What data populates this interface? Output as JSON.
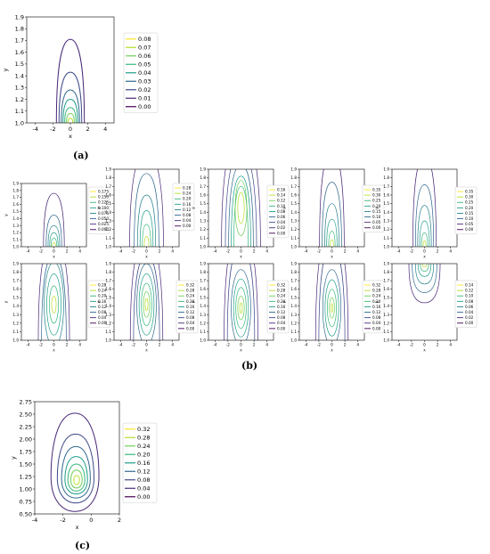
{
  "captions": {
    "a": "(a)",
    "b": "(b)",
    "c": "(c)"
  },
  "colors": {
    "viridis": [
      "#440154",
      "#482878",
      "#3e4a89",
      "#31688e",
      "#26828e",
      "#1f9e89",
      "#35b779",
      "#6ece58",
      "#b5de2b",
      "#fde725"
    ]
  },
  "chart_data": [
    {
      "id": "a",
      "type": "contour",
      "xlabel": "x",
      "ylabel": "y",
      "xlim": [
        -5,
        5
      ],
      "ylim": [
        1.0,
        1.9
      ],
      "xticks": [
        "-4",
        "-2",
        "0",
        "2",
        "4"
      ],
      "yticks": [
        "1.0",
        "1.1",
        "1.2",
        "1.3",
        "1.4",
        "1.5",
        "1.6",
        "1.7",
        "1.8",
        "1.9"
      ],
      "levels": [
        "0.00",
        "0.01",
        "0.02",
        "0.03",
        "0.04",
        "0.05",
        "0.06",
        "0.07",
        "0.08"
      ],
      "center": [
        0,
        1.0
      ],
      "contours": [
        {
          "level": 0.01,
          "hw": 1.6,
          "top": 1.71
        },
        {
          "level": 0.02,
          "hw": 1.3,
          "top": 1.43
        },
        {
          "level": 0.03,
          "hw": 1.05,
          "top": 1.28
        },
        {
          "level": 0.04,
          "hw": 0.85,
          "top": 1.2
        },
        {
          "level": 0.05,
          "hw": 0.65,
          "top": 1.13
        },
        {
          "level": 0.06,
          "hw": 0.45,
          "top": 1.08
        },
        {
          "level": 0.07,
          "hw": 0.28,
          "top": 1.04
        }
      ]
    },
    {
      "id": "b1",
      "type": "contour",
      "xlabel": "x",
      "ylabel": "y",
      "xlim": [
        -5,
        5
      ],
      "ylim": [
        1.0,
        1.9
      ],
      "xticks": [
        "-4",
        "-2",
        "0",
        "2",
        "4"
      ],
      "yticks": [
        "1.0",
        "1.1",
        "1.2",
        "1.3",
        "1.4",
        "1.5",
        "1.6",
        "1.7",
        "1.8",
        "1.9"
      ],
      "levels": [
        "0.000",
        "0.025",
        "0.050",
        "0.075",
        "0.100",
        "0.125",
        "0.150",
        "0.175"
      ],
      "center": [
        0,
        1.0
      ],
      "contours": [
        {
          "level": 0.025,
          "hw": 1.6,
          "top": 1.76
        },
        {
          "level": 0.05,
          "hw": 1.2,
          "top": 1.45
        },
        {
          "level": 0.075,
          "hw": 0.9,
          "top": 1.3
        },
        {
          "level": 0.1,
          "hw": 0.65,
          "top": 1.2
        },
        {
          "level": 0.125,
          "hw": 0.45,
          "top": 1.12
        },
        {
          "level": 0.15,
          "hw": 0.25,
          "top": 1.06
        }
      ]
    },
    {
      "id": "b2",
      "type": "contour",
      "xlabel": "x",
      "ylabel": "y",
      "xlim": [
        -5,
        5
      ],
      "ylim": [
        1.0,
        1.9
      ],
      "xticks": [
        "-4",
        "-2",
        "0",
        "2",
        "4"
      ],
      "yticks": [
        "1.0",
        "1.1",
        "1.2",
        "1.3",
        "1.4",
        "1.5",
        "1.6",
        "1.7",
        "1.8",
        "1.9"
      ],
      "levels": [
        "0.00",
        "0.04",
        "0.08",
        "0.12",
        "0.16",
        "0.20",
        "0.24",
        "0.28"
      ],
      "center": [
        0,
        1.0
      ],
      "contours": [
        {
          "level": 0.04,
          "hw": 2.6,
          "top": 2.1
        },
        {
          "level": 0.08,
          "hw": 1.9,
          "top": 1.85
        },
        {
          "level": 0.12,
          "hw": 1.4,
          "top": 1.6
        },
        {
          "level": 0.16,
          "hw": 1.0,
          "top": 1.42
        },
        {
          "level": 0.2,
          "hw": 0.65,
          "top": 1.26
        },
        {
          "level": 0.24,
          "hw": 0.35,
          "top": 1.12
        }
      ]
    },
    {
      "id": "b3",
      "type": "contour",
      "xlabel": "x",
      "ylabel": "y",
      "xlim": [
        -5,
        5
      ],
      "ylim": [
        1.0,
        1.9
      ],
      "xticks": [
        "-4",
        "-2",
        "0",
        "2",
        "4"
      ],
      "yticks": [
        "1.0",
        "1.1",
        "1.2",
        "1.3",
        "1.4",
        "1.5",
        "1.6",
        "1.7",
        "1.8",
        "1.9"
      ],
      "levels": [
        "0.00",
        "0.02",
        "0.04",
        "0.06",
        "0.08",
        "0.10",
        "0.12",
        "0.14",
        "0.16"
      ],
      "center": [
        0,
        1.0
      ],
      "contours": [
        {
          "level": 0.02,
          "hw": 3.0,
          "top": 2.3
        },
        {
          "level": 0.04,
          "hw": 2.4,
          "top": 2.1
        },
        {
          "level": 0.06,
          "hw": 1.9,
          "top": 1.95
        },
        {
          "level": 0.08,
          "hw": 1.5,
          "top": 1.82
        },
        {
          "level": 0.1,
          "hw": 1.1,
          "top": 1.7
        }
      ],
      "ellipses": [
        {
          "level": 0.12,
          "cx": 0,
          "cy": 1.45,
          "rx": 0.9,
          "ry": 0.32
        },
        {
          "level": 0.14,
          "cx": 0,
          "cy": 1.45,
          "rx": 0.5,
          "ry": 0.18
        }
      ]
    },
    {
      "id": "b4",
      "type": "contour",
      "xlabel": "x",
      "ylabel": "y",
      "xlim": [
        -5,
        5
      ],
      "ylim": [
        1.0,
        1.9
      ],
      "xticks": [
        "-4",
        "-2",
        "0",
        "2",
        "4"
      ],
      "yticks": [
        "1.0",
        "1.1",
        "1.2",
        "1.3",
        "1.4",
        "1.5",
        "1.6",
        "1.7",
        "1.8",
        "1.9"
      ],
      "levels": [
        "0.00",
        "0.05",
        "0.10",
        "0.15",
        "0.20",
        "0.25",
        "0.30",
        "0.35"
      ],
      "center": [
        0,
        1.0
      ],
      "contours": [
        {
          "level": 0.05,
          "hw": 1.9,
          "top": 2.1
        },
        {
          "level": 0.1,
          "hw": 1.5,
          "top": 1.75
        },
        {
          "level": 0.15,
          "hw": 1.1,
          "top": 1.5
        },
        {
          "level": 0.2,
          "hw": 0.8,
          "top": 1.32
        },
        {
          "level": 0.25,
          "hw": 0.5,
          "top": 1.18
        },
        {
          "level": 0.3,
          "hw": 0.25,
          "top": 1.08
        }
      ]
    },
    {
      "id": "b5",
      "type": "contour",
      "xlabel": "x",
      "ylabel": "y",
      "xlim": [
        -5,
        5
      ],
      "ylim": [
        1.0,
        1.9
      ],
      "xticks": [
        "-4",
        "-2",
        "0",
        "2",
        "4"
      ],
      "yticks": [
        "1.0",
        "1.1",
        "1.2",
        "1.3",
        "1.4",
        "1.5",
        "1.6",
        "1.7",
        "1.8",
        "1.9"
      ],
      "levels": [
        "0.00",
        "0.05",
        "0.10",
        "0.15",
        "0.20",
        "0.25",
        "0.30",
        "0.35"
      ],
      "center": [
        0,
        1.0
      ],
      "contours": [
        {
          "level": 0.05,
          "hw": 1.8,
          "top": 2.05
        },
        {
          "level": 0.1,
          "hw": 1.4,
          "top": 1.72
        },
        {
          "level": 0.15,
          "hw": 1.05,
          "top": 1.48
        },
        {
          "level": 0.2,
          "hw": 0.75,
          "top": 1.3
        },
        {
          "level": 0.25,
          "hw": 0.48,
          "top": 1.16
        },
        {
          "level": 0.3,
          "hw": 0.22,
          "top": 1.07
        }
      ]
    },
    {
      "id": "b6",
      "type": "contour",
      "xlabel": "x",
      "ylabel": "y",
      "xlim": [
        -5,
        5
      ],
      "ylim": [
        1.0,
        1.9
      ],
      "xticks": [
        "-4",
        "-2",
        "0",
        "2",
        "4"
      ],
      "yticks": [
        "1.0",
        "1.1",
        "1.2",
        "1.3",
        "1.4",
        "1.5",
        "1.6",
        "1.7",
        "1.8",
        "1.9"
      ],
      "levels": [
        "0.00",
        "0.04",
        "0.08",
        "0.12",
        "0.16",
        "0.20",
        "0.24",
        "0.28"
      ],
      "center": [
        0,
        1.0
      ],
      "contours": [
        {
          "level": 0.04,
          "hw": 2.4,
          "top": 2.2
        },
        {
          "level": 0.08,
          "hw": 1.9,
          "top": 2.0
        }
      ],
      "ellipses": [
        {
          "level": 0.12,
          "cx": 0,
          "cy": 1.42,
          "rx": 1.5,
          "ry": 0.5
        },
        {
          "level": 0.16,
          "cx": 0,
          "cy": 1.42,
          "rx": 1.1,
          "ry": 0.36
        },
        {
          "level": 0.2,
          "cx": 0,
          "cy": 1.42,
          "rx": 0.7,
          "ry": 0.22
        },
        {
          "level": 0.24,
          "cx": 0,
          "cy": 1.42,
          "rx": 0.35,
          "ry": 0.1
        }
      ]
    },
    {
      "id": "b7",
      "type": "contour",
      "xlabel": "x",
      "ylabel": "y",
      "xlim": [
        -5,
        5
      ],
      "ylim": [
        1.0,
        1.9
      ],
      "xticks": [
        "-4",
        "-2",
        "0",
        "2",
        "4"
      ],
      "yticks": [
        "1.0",
        "1.1",
        "1.2",
        "1.3",
        "1.4",
        "1.5",
        "1.6",
        "1.7",
        "1.8",
        "1.9"
      ],
      "levels": [
        "0.00",
        "0.04",
        "0.08",
        "0.12",
        "0.16",
        "0.20",
        "0.24",
        "0.28",
        "0.32"
      ],
      "center": [
        0,
        1.0
      ],
      "contours": [
        {
          "level": 0.04,
          "hw": 2.5,
          "top": 2.2
        },
        {
          "level": 0.08,
          "hw": 2.0,
          "top": 2.0
        }
      ],
      "ellipses": [
        {
          "level": 0.12,
          "cx": 0,
          "cy": 1.42,
          "rx": 1.5,
          "ry": 0.48
        },
        {
          "level": 0.16,
          "cx": 0,
          "cy": 1.42,
          "rx": 1.15,
          "ry": 0.36
        },
        {
          "level": 0.2,
          "cx": 0,
          "cy": 1.42,
          "rx": 0.8,
          "ry": 0.25
        },
        {
          "level": 0.24,
          "cx": 0,
          "cy": 1.42,
          "rx": 0.5,
          "ry": 0.15
        },
        {
          "level": 0.28,
          "cx": 0,
          "cy": 1.42,
          "rx": 0.22,
          "ry": 0.07
        }
      ]
    },
    {
      "id": "b8",
      "type": "contour",
      "xlabel": "x",
      "ylabel": "y",
      "xlim": [
        -5,
        5
      ],
      "ylim": [
        1.0,
        1.9
      ],
      "xticks": [
        "-4",
        "-2",
        "0",
        "2",
        "4"
      ],
      "yticks": [
        "1.0",
        "1.1",
        "1.2",
        "1.3",
        "1.4",
        "1.5",
        "1.6",
        "1.7",
        "1.8",
        "1.9"
      ],
      "levels": [
        "0.00",
        "0.04",
        "0.08",
        "0.12",
        "0.16",
        "0.20",
        "0.24",
        "0.28",
        "0.32"
      ],
      "center": [
        0,
        1.0
      ],
      "contours": [
        {
          "level": 0.04,
          "hw": 2.6,
          "top": 2.3
        },
        {
          "level": 0.08,
          "hw": 2.1,
          "top": 2.1
        }
      ],
      "ellipses": [
        {
          "level": 0.12,
          "cx": 0,
          "cy": 1.38,
          "rx": 1.5,
          "ry": 0.45
        },
        {
          "level": 0.16,
          "cx": 0,
          "cy": 1.38,
          "rx": 1.15,
          "ry": 0.34
        },
        {
          "level": 0.2,
          "cx": 0,
          "cy": 1.38,
          "rx": 0.8,
          "ry": 0.24
        },
        {
          "level": 0.24,
          "cx": 0,
          "cy": 1.38,
          "rx": 0.5,
          "ry": 0.14
        },
        {
          "level": 0.28,
          "cx": 0,
          "cy": 1.38,
          "rx": 0.2,
          "ry": 0.06
        }
      ]
    },
    {
      "id": "b9",
      "type": "contour",
      "xlabel": "x",
      "ylabel": "y",
      "xlim": [
        -5,
        5
      ],
      "ylim": [
        1.0,
        1.9
      ],
      "xticks": [
        "-4",
        "-2",
        "0",
        "2",
        "4"
      ],
      "yticks": [
        "1.0",
        "1.1",
        "1.2",
        "1.3",
        "1.4",
        "1.5",
        "1.6",
        "1.7",
        "1.8",
        "1.9"
      ],
      "levels": [
        "0.00",
        "0.04",
        "0.08",
        "0.12",
        "0.16",
        "0.20",
        "0.24",
        "0.28",
        "0.32"
      ],
      "center": [
        0,
        1.0
      ],
      "contours": [
        {
          "level": 0.04,
          "hw": 2.5,
          "top": 2.3
        },
        {
          "level": 0.08,
          "hw": 2.0,
          "top": 2.1
        }
      ],
      "ellipses": [
        {
          "level": 0.12,
          "cx": 0,
          "cy": 1.38,
          "rx": 1.4,
          "ry": 0.45
        },
        {
          "level": 0.16,
          "cx": 0,
          "cy": 1.38,
          "rx": 1.05,
          "ry": 0.33
        },
        {
          "level": 0.2,
          "cx": 0,
          "cy": 1.38,
          "rx": 0.7,
          "ry": 0.22
        },
        {
          "level": 0.24,
          "cx": 0,
          "cy": 1.38,
          "rx": 0.4,
          "ry": 0.12
        },
        {
          "level": 0.28,
          "cx": 0,
          "cy": 1.38,
          "rx": 0.15,
          "ry": 0.05
        }
      ]
    },
    {
      "id": "b10",
      "type": "contour",
      "xlabel": "x",
      "ylabel": "y",
      "xlim": [
        -5,
        5
      ],
      "ylim": [
        1.0,
        1.9
      ],
      "xticks": [
        "-4",
        "-2",
        "0",
        "2",
        "4"
      ],
      "yticks": [
        "1.0",
        "1.1",
        "1.2",
        "1.3",
        "1.4",
        "1.5",
        "1.6",
        "1.7",
        "1.8",
        "1.9"
      ],
      "levels": [
        "0.00",
        "0.02",
        "0.04",
        "0.06",
        "0.08",
        "0.10",
        "0.12",
        "0.14"
      ],
      "center": [
        0,
        1.9
      ],
      "contours_down": [
        {
          "level": 0.02,
          "hw": 2.4,
          "bottom": 1.44
        },
        {
          "level": 0.04,
          "hw": 1.9,
          "bottom": 1.56
        },
        {
          "level": 0.06,
          "hw": 1.4,
          "bottom": 1.66
        },
        {
          "level": 0.08,
          "hw": 1.0,
          "bottom": 1.75
        },
        {
          "level": 0.1,
          "hw": 0.65,
          "bottom": 1.81
        },
        {
          "level": 0.12,
          "hw": 0.35,
          "bottom": 1.86
        }
      ]
    },
    {
      "id": "c",
      "type": "contour",
      "xlabel": "x",
      "ylabel": "y",
      "xlim": [
        -4,
        2
      ],
      "ylim": [
        0.5,
        2.75
      ],
      "xticks": [
        "-4",
        "-2",
        "0",
        "2"
      ],
      "yticks": [
        "0.50",
        "0.75",
        "1.00",
        "1.25",
        "1.50",
        "1.75",
        "2.00",
        "2.25",
        "2.50",
        "2.75"
      ],
      "levels": [
        "0.00",
        "0.04",
        "0.08",
        "0.12",
        "0.16",
        "0.20",
        "0.24",
        "0.28",
        "0.32"
      ],
      "eggs": [
        {
          "level": 0.04,
          "cx": -1.15,
          "top": 2.52,
          "bottom": 0.55,
          "peak": 1.25,
          "rx": 1.7
        },
        {
          "level": 0.08,
          "cx": -1.1,
          "top": 2.1,
          "bottom": 0.72,
          "peak": 1.22,
          "rx": 1.3
        },
        {
          "level": 0.12,
          "cx": -1.08,
          "top": 1.85,
          "bottom": 0.82,
          "peak": 1.2,
          "rx": 1.02
        },
        {
          "level": 0.16,
          "cx": -1.06,
          "top": 1.65,
          "bottom": 0.9,
          "peak": 1.19,
          "rx": 0.8
        },
        {
          "level": 0.2,
          "cx": -1.05,
          "top": 1.5,
          "bottom": 0.96,
          "peak": 1.18,
          "rx": 0.6
        },
        {
          "level": 0.24,
          "cx": -1.04,
          "top": 1.38,
          "bottom": 1.02,
          "peak": 1.18,
          "rx": 0.4
        },
        {
          "level": 0.28,
          "cx": -1.03,
          "top": 1.27,
          "bottom": 1.09,
          "peak": 1.18,
          "rx": 0.2
        }
      ]
    }
  ]
}
